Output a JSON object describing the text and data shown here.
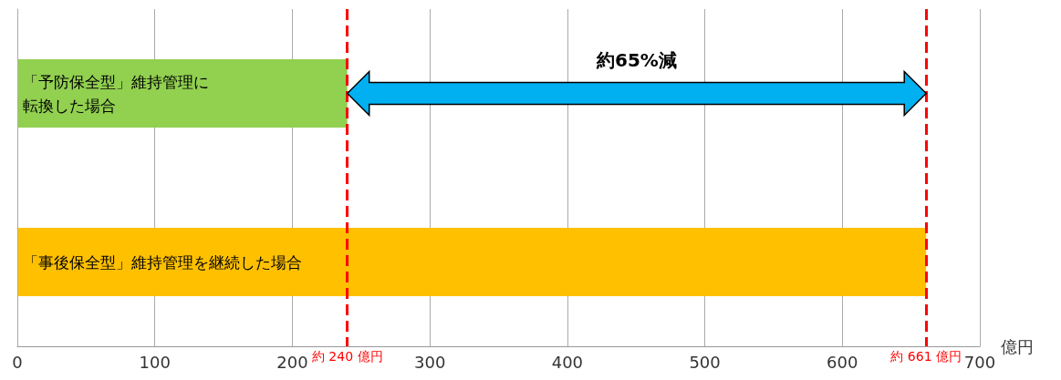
{
  "chart_data": {
    "type": "bar",
    "orientation": "horizontal",
    "categories": [
      "「予防保全型」維持管理に転換した場合",
      "「事後保全型」維持管理を継続した場合"
    ],
    "values": [
      240,
      661
    ],
    "colors": [
      "#92d050",
      "#ffc000"
    ],
    "xlim": [
      0,
      700
    ],
    "xticks": [
      0,
      100,
      200,
      300,
      400,
      500,
      600,
      700
    ],
    "xlabel": "億円",
    "grid": "x",
    "ref_lines": [
      {
        "axis": "x",
        "value": 240,
        "label": "約 240 億円",
        "color": "#ff0000",
        "line_style": "dashed"
      },
      {
        "axis": "x",
        "value": 661,
        "label": "約 661 億円",
        "color": "#ff0000",
        "line_style": "dashed"
      }
    ],
    "annotations": [
      "約65%減"
    ]
  }
}
